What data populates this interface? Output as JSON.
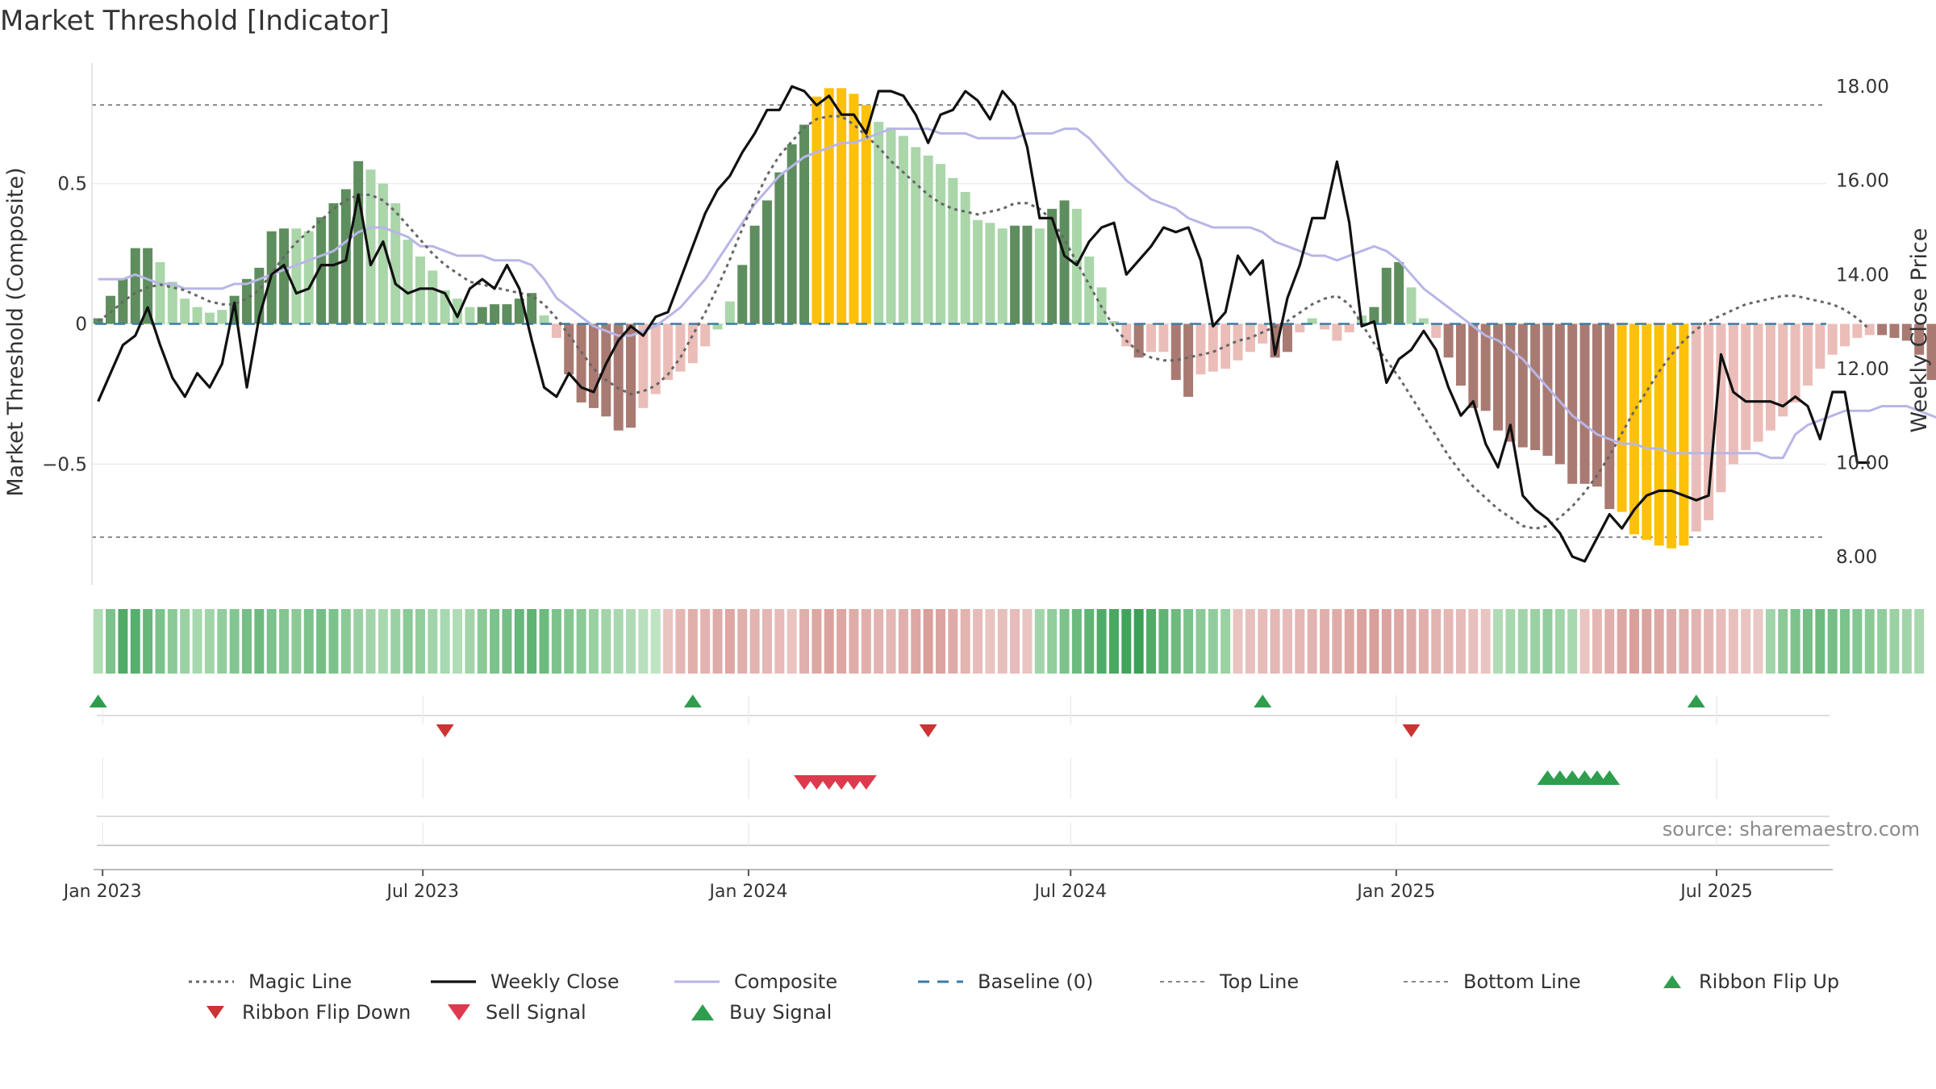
{
  "title": "Market Threshold [Indicator]",
  "source": "source: sharemaestro.com",
  "chart_data": {
    "type": "bar",
    "title": "Market Threshold [Indicator]",
    "ylabel": "Market Threshold (Composite)",
    "y2label": "Weekly Close Price",
    "ylim": [
      -0.93,
      0.93
    ],
    "y2lim": [
      7.4,
      18.5
    ],
    "yticks": [
      0.5,
      0,
      -0.5
    ],
    "ytick_labels": [
      "0.5",
      "0",
      "−0.5"
    ],
    "y2ticks": [
      18,
      16,
      14,
      12,
      10,
      8
    ],
    "y2tick_labels": [
      "18.00",
      "16.00",
      "14.00",
      "12.00",
      "10.00",
      "8.00"
    ],
    "x_start": "2022-12-26",
    "x_end": "2025-09-01",
    "xticks": [
      "2023-01-01",
      "2023-07-01",
      "2024-01-01",
      "2024-07-01",
      "2025-01-01",
      "2025-07-01"
    ],
    "xtick_labels": [
      "Jan 2023",
      "Jul 2023",
      "Jan 2024",
      "Jul 2024",
      "Jan 2025",
      "Jul 2025"
    ],
    "top_line": 0.78,
    "bottom_line": -0.76,
    "grid": true,
    "legend_position": "bottom",
    "colors": {
      "strong_positive": "#5e8e5e",
      "weak_positive": "#aad6aa",
      "extreme": "#ffc107",
      "strong_negative": "#a97a72",
      "weak_negative": "#ebbdb8",
      "magic_line": "#666666",
      "weekly_close": "#111111",
      "composite": "#b8b6e6",
      "baseline": "#3a7ca5",
      "threshold_line": "#888888",
      "buy": "#2e9e4e",
      "sell": "#dd3a4e",
      "flip_up": "#2e9e4e",
      "flip_down": "#cc3333"
    },
    "bars": [
      0.02,
      0.1,
      0.16,
      0.27,
      0.27,
      0.22,
      0.15,
      0.09,
      0.06,
      0.04,
      0.05,
      0.1,
      0.16,
      0.2,
      0.33,
      0.34,
      0.34,
      0.33,
      0.38,
      0.43,
      0.48,
      0.58,
      0.55,
      0.5,
      0.43,
      0.3,
      0.24,
      0.19,
      0.12,
      0.09,
      0.06,
      0.06,
      0.07,
      0.07,
      0.09,
      0.11,
      0.03,
      -0.05,
      -0.18,
      -0.28,
      -0.3,
      -0.33,
      -0.38,
      -0.37,
      -0.3,
      -0.25,
      -0.2,
      -0.17,
      -0.14,
      -0.08,
      -0.02,
      0.08,
      0.21,
      0.35,
      0.44,
      0.54,
      0.64,
      0.71,
      0.81,
      0.84,
      0.84,
      0.82,
      0.78,
      0.72,
      0.7,
      0.67,
      0.63,
      0.6,
      0.57,
      0.52,
      0.47,
      0.37,
      0.36,
      0.34,
      0.35,
      0.35,
      0.34,
      0.41,
      0.44,
      0.41,
      0.24,
      0.13,
      0.01,
      -0.08,
      -0.12,
      -0.1,
      -0.1,
      -0.2,
      -0.26,
      -0.18,
      -0.17,
      -0.16,
      -0.13,
      -0.1,
      -0.07,
      -0.12,
      -0.1,
      -0.03,
      0.02,
      -0.02,
      -0.06,
      -0.03,
      0.03,
      0.06,
      0.2,
      0.22,
      0.13,
      0.02,
      -0.05,
      -0.12,
      -0.22,
      -0.3,
      -0.31,
      -0.38,
      -0.42,
      -0.44,
      -0.45,
      -0.47,
      -0.5,
      -0.57,
      -0.57,
      -0.58,
      -0.66,
      -0.67,
      -0.75,
      -0.77,
      -0.79,
      -0.8,
      -0.79,
      -0.74,
      -0.7,
      -0.6,
      -0.5,
      -0.45,
      -0.42,
      -0.38,
      -0.33,
      -0.28,
      -0.22,
      -0.16,
      -0.11,
      -0.08,
      -0.05,
      -0.04,
      -0.04,
      -0.05,
      -0.06,
      -0.11,
      -0.2,
      -0.29
    ],
    "bar_classes": [
      "sp",
      "sp",
      "sp",
      "sp",
      "sp",
      "wp",
      "wp",
      "wp",
      "wp",
      "wp",
      "wp",
      "sp",
      "sp",
      "sp",
      "sp",
      "sp",
      "wp",
      "wp",
      "sp",
      "sp",
      "sp",
      "sp",
      "wp",
      "wp",
      "wp",
      "wp",
      "wp",
      "wp",
      "wp",
      "wp",
      "wp",
      "sp",
      "sp",
      "sp",
      "sp",
      "sp",
      "wp",
      "wn",
      "sn",
      "sn",
      "sn",
      "sn",
      "sn",
      "sn",
      "wn",
      "wn",
      "wn",
      "wn",
      "wn",
      "wn",
      "wp",
      "wp",
      "sp",
      "sp",
      "sp",
      "sp",
      "sp",
      "sp",
      "ex",
      "ex",
      "ex",
      "ex",
      "ex",
      "wp",
      "wp",
      "wp",
      "wp",
      "wp",
      "wp",
      "wp",
      "wp",
      "wp",
      "wp",
      "wp",
      "sp",
      "sp",
      "wp",
      "sp",
      "sp",
      "wp",
      "wp",
      "wp",
      "wp",
      "wn",
      "sn",
      "wn",
      "wn",
      "sn",
      "sn",
      "wn",
      "wn",
      "wn",
      "wn",
      "wn",
      "wn",
      "sn",
      "sn",
      "wn",
      "wp",
      "wn",
      "wn",
      "wn",
      "wp",
      "sp",
      "sp",
      "sp",
      "wp",
      "wp",
      "wn",
      "sn",
      "sn",
      "sn",
      "sn",
      "sn",
      "sn",
      "sn",
      "sn",
      "sn",
      "sn",
      "sn",
      "sn",
      "sn",
      "sn",
      "ex",
      "ex",
      "ex",
      "ex",
      "ex",
      "ex",
      "wn",
      "wn",
      "wn",
      "wn",
      "wn",
      "wn",
      "wn",
      "wn",
      "wn",
      "wn",
      "wn",
      "wn",
      "wn",
      "wn",
      "wn",
      "sn",
      "sn",
      "sn",
      "sn",
      "sn"
    ],
    "weekly_close": [
      11.3,
      11.9,
      12.5,
      12.7,
      13.3,
      12.5,
      11.8,
      11.4,
      11.9,
      11.6,
      12.1,
      13.4,
      11.6,
      13.1,
      14.0,
      14.2,
      13.6,
      13.7,
      14.2,
      14.2,
      14.3,
      15.7,
      14.2,
      14.7,
      13.8,
      13.6,
      13.7,
      13.7,
      13.6,
      13.1,
      13.7,
      13.9,
      13.7,
      14.2,
      13.7,
      12.6,
      11.6,
      11.4,
      11.9,
      11.6,
      11.5,
      12.1,
      12.6,
      12.9,
      12.7,
      13.1,
      13.2,
      13.9,
      14.6,
      15.3,
      15.8,
      16.1,
      16.6,
      17.0,
      17.5,
      17.5,
      18.0,
      17.9,
      17.6,
      17.8,
      17.4,
      17.4,
      17.0,
      17.9,
      17.9,
      17.8,
      17.4,
      16.8,
      17.4,
      17.5,
      17.9,
      17.7,
      17.3,
      17.9,
      17.6,
      16.7,
      15.2,
      15.2,
      14.4,
      14.2,
      14.7,
      15.0,
      15.1,
      14.0,
      14.3,
      14.6,
      15.0,
      14.9,
      15.0,
      14.3,
      12.9,
      13.2,
      14.4,
      14.0,
      14.3,
      12.3,
      13.5,
      14.2,
      15.2,
      15.2,
      16.4,
      15.1,
      12.9,
      13.0,
      11.7,
      12.2,
      12.4,
      12.8,
      12.4,
      11.6,
      11.0,
      11.3,
      10.4,
      9.9,
      10.8,
      9.3,
      9.0,
      8.8,
      8.5,
      8.0,
      7.9,
      8.4,
      8.9,
      8.6,
      9.0,
      9.3,
      9.4,
      9.4,
      9.3,
      9.2,
      9.3,
      12.3,
      11.5,
      11.3,
      11.3,
      11.3,
      11.2,
      11.4,
      11.2,
      10.5,
      11.5,
      11.5,
      10.0,
      10.0
    ],
    "composite": [
      13.9,
      13.9,
      13.9,
      14.0,
      13.9,
      13.8,
      13.8,
      13.7,
      13.7,
      13.7,
      13.7,
      13.8,
      13.8,
      13.9,
      14.0,
      14.1,
      14.2,
      14.3,
      14.4,
      14.5,
      14.7,
      14.9,
      15.0,
      15.0,
      14.9,
      14.8,
      14.6,
      14.6,
      14.5,
      14.4,
      14.4,
      14.4,
      14.3,
      14.3,
      14.3,
      14.2,
      13.9,
      13.5,
      13.3,
      13.1,
      12.9,
      12.8,
      12.7,
      12.7,
      12.8,
      12.9,
      13.1,
      13.3,
      13.6,
      13.9,
      14.3,
      14.7,
      15.1,
      15.5,
      15.8,
      16.1,
      16.3,
      16.5,
      16.6,
      16.7,
      16.8,
      16.8,
      16.9,
      17.0,
      17.1,
      17.1,
      17.1,
      17.1,
      17.0,
      17.0,
      17.0,
      16.9,
      16.9,
      16.9,
      16.9,
      17.0,
      17.0,
      17.0,
      17.1,
      17.1,
      16.9,
      16.6,
      16.3,
      16.0,
      15.8,
      15.6,
      15.5,
      15.4,
      15.2,
      15.1,
      15.0,
      15.0,
      15.0,
      15.0,
      14.9,
      14.7,
      14.6,
      14.5,
      14.4,
      14.4,
      14.3,
      14.4,
      14.5,
      14.6,
      14.5,
      14.3,
      14.0,
      13.7,
      13.5,
      13.3,
      13.1,
      12.9,
      12.7,
      12.6,
      12.4,
      12.2,
      11.9,
      11.6,
      11.3,
      11.0,
      10.8,
      10.6,
      10.5,
      10.4,
      10.4,
      10.3,
      10.3,
      10.2,
      10.2,
      10.2,
      10.2,
      10.2,
      10.2,
      10.2,
      10.2,
      10.1,
      10.1,
      10.6,
      10.8,
      10.9,
      11.0,
      11.1,
      11.1,
      11.1,
      11.2,
      11.2,
      11.2,
      11.1,
      11.0,
      10.9
    ],
    "magic_line": [
      0.01,
      0.04,
      0.08,
      0.11,
      0.13,
      0.14,
      0.13,
      0.12,
      0.1,
      0.08,
      0.07,
      0.07,
      0.09,
      0.12,
      0.18,
      0.24,
      0.29,
      0.33,
      0.37,
      0.41,
      0.44,
      0.46,
      0.46,
      0.44,
      0.4,
      0.35,
      0.3,
      0.25,
      0.21,
      0.18,
      0.15,
      0.14,
      0.13,
      0.12,
      0.11,
      0.1,
      0.07,
      0.02,
      -0.04,
      -0.1,
      -0.16,
      -0.2,
      -0.23,
      -0.25,
      -0.24,
      -0.22,
      -0.18,
      -0.12,
      -0.04,
      0.04,
      0.13,
      0.23,
      0.34,
      0.44,
      0.53,
      0.6,
      0.65,
      0.7,
      0.73,
      0.74,
      0.74,
      0.71,
      0.67,
      0.63,
      0.58,
      0.54,
      0.5,
      0.46,
      0.43,
      0.41,
      0.4,
      0.39,
      0.4,
      0.41,
      0.43,
      0.43,
      0.41,
      0.37,
      0.3,
      0.22,
      0.14,
      0.06,
      -0.01,
      -0.06,
      -0.1,
      -0.12,
      -0.13,
      -0.13,
      -0.12,
      -0.11,
      -0.1,
      -0.08,
      -0.06,
      -0.05,
      -0.03,
      -0.01,
      0.01,
      0.04,
      0.07,
      0.09,
      0.1,
      0.07,
      0.0,
      -0.07,
      -0.13,
      -0.19,
      -0.26,
      -0.33,
      -0.4,
      -0.47,
      -0.53,
      -0.58,
      -0.62,
      -0.66,
      -0.69,
      -0.72,
      -0.73,
      -0.72,
      -0.69,
      -0.65,
      -0.6,
      -0.54,
      -0.47,
      -0.39,
      -0.31,
      -0.24,
      -0.17,
      -0.11,
      -0.06,
      -0.02,
      0.01,
      0.03,
      0.05,
      0.07,
      0.08,
      0.09,
      0.1,
      0.1,
      0.09,
      0.08,
      0.07,
      0.05,
      0.02,
      -0.02
    ],
    "ribbon": [
      0.2,
      0.55,
      0.85,
      0.8,
      0.7,
      0.55,
      0.45,
      0.35,
      0.25,
      0.3,
      0.4,
      0.5,
      0.6,
      0.65,
      0.55,
      0.5,
      0.45,
      0.55,
      0.6,
      0.55,
      0.45,
      0.35,
      0.3,
      0.25,
      0.35,
      0.45,
      0.4,
      0.3,
      0.25,
      0.2,
      0.3,
      0.45,
      0.55,
      0.6,
      0.7,
      0.75,
      0.65,
      0.55,
      0.5,
      0.45,
      0.35,
      0.3,
      0.25,
      0.2,
      0.15,
      0.1,
      -0.2,
      -0.35,
      -0.45,
      -0.4,
      -0.5,
      -0.55,
      -0.45,
      -0.4,
      -0.35,
      -0.3,
      -0.2,
      -0.45,
      -0.55,
      -0.6,
      -0.55,
      -0.5,
      -0.45,
      -0.4,
      -0.35,
      -0.45,
      -0.55,
      -0.65,
      -0.6,
      -0.5,
      -0.4,
      -0.3,
      -0.2,
      -0.25,
      -0.3,
      -0.2,
      0.3,
      0.4,
      0.55,
      0.65,
      0.75,
      0.85,
      0.9,
      0.95,
      1.0,
      0.85,
      0.75,
      0.65,
      0.55,
      0.45,
      0.4,
      0.35,
      -0.2,
      -0.25,
      -0.3,
      -0.35,
      -0.3,
      -0.35,
      -0.4,
      -0.45,
      -0.5,
      -0.55,
      -0.6,
      -0.65,
      -0.6,
      -0.55,
      -0.5,
      -0.45,
      -0.4,
      -0.35,
      -0.3,
      -0.25,
      -0.2,
      0.2,
      0.25,
      0.3,
      0.35,
      0.4,
      0.3,
      0.25,
      -0.2,
      -0.35,
      -0.45,
      -0.55,
      -0.65,
      -0.6,
      -0.55,
      -0.5,
      -0.45,
      -0.4,
      -0.35,
      -0.3,
      -0.25,
      -0.2,
      -0.15,
      0.3,
      0.45,
      0.55,
      0.6,
      0.65,
      0.6,
      0.55,
      0.5,
      0.45,
      0.4,
      0.35,
      0.3,
      0.25
    ],
    "ribbon_flip_up": [
      "2022-12-26",
      "2023-11-27",
      "2024-10-14",
      "2025-06-16"
    ],
    "ribbon_flip_down": [
      "2023-07-10",
      "2024-04-08",
      "2025-01-06"
    ],
    "sell_signals": [
      "2024-01-29",
      "2024-02-05",
      "2024-02-12",
      "2024-02-19",
      "2024-02-26",
      "2024-03-04"
    ],
    "buy_signals": [
      "2025-03-24",
      "2025-03-31",
      "2025-04-07",
      "2025-04-14",
      "2025-04-21",
      "2025-04-28"
    ],
    "legend": [
      {
        "name": "Magic Line",
        "kind": "dotted",
        "color": "#666666"
      },
      {
        "name": "Weekly Close",
        "kind": "solid",
        "color": "#111111"
      },
      {
        "name": "Composite",
        "kind": "solid-thin",
        "color": "#b8b6e6"
      },
      {
        "name": "Baseline (0)",
        "kind": "dashed",
        "color": "#3a7ca5"
      },
      {
        "name": "Top Line",
        "kind": "dotted-thin",
        "color": "#888888"
      },
      {
        "name": "Bottom Line",
        "kind": "dotted-thin",
        "color": "#888888"
      },
      {
        "name": "Ribbon Flip Up",
        "kind": "triangle-up",
        "color": "#2e9e4e"
      },
      {
        "name": "Ribbon Flip Down",
        "kind": "triangle-down",
        "color": "#cc3333"
      },
      {
        "name": "Sell Signal",
        "kind": "triangle-down-large",
        "color": "#dd3a4e"
      },
      {
        "name": "Buy Signal",
        "kind": "triangle-up-large",
        "color": "#2e9e4e"
      }
    ]
  }
}
